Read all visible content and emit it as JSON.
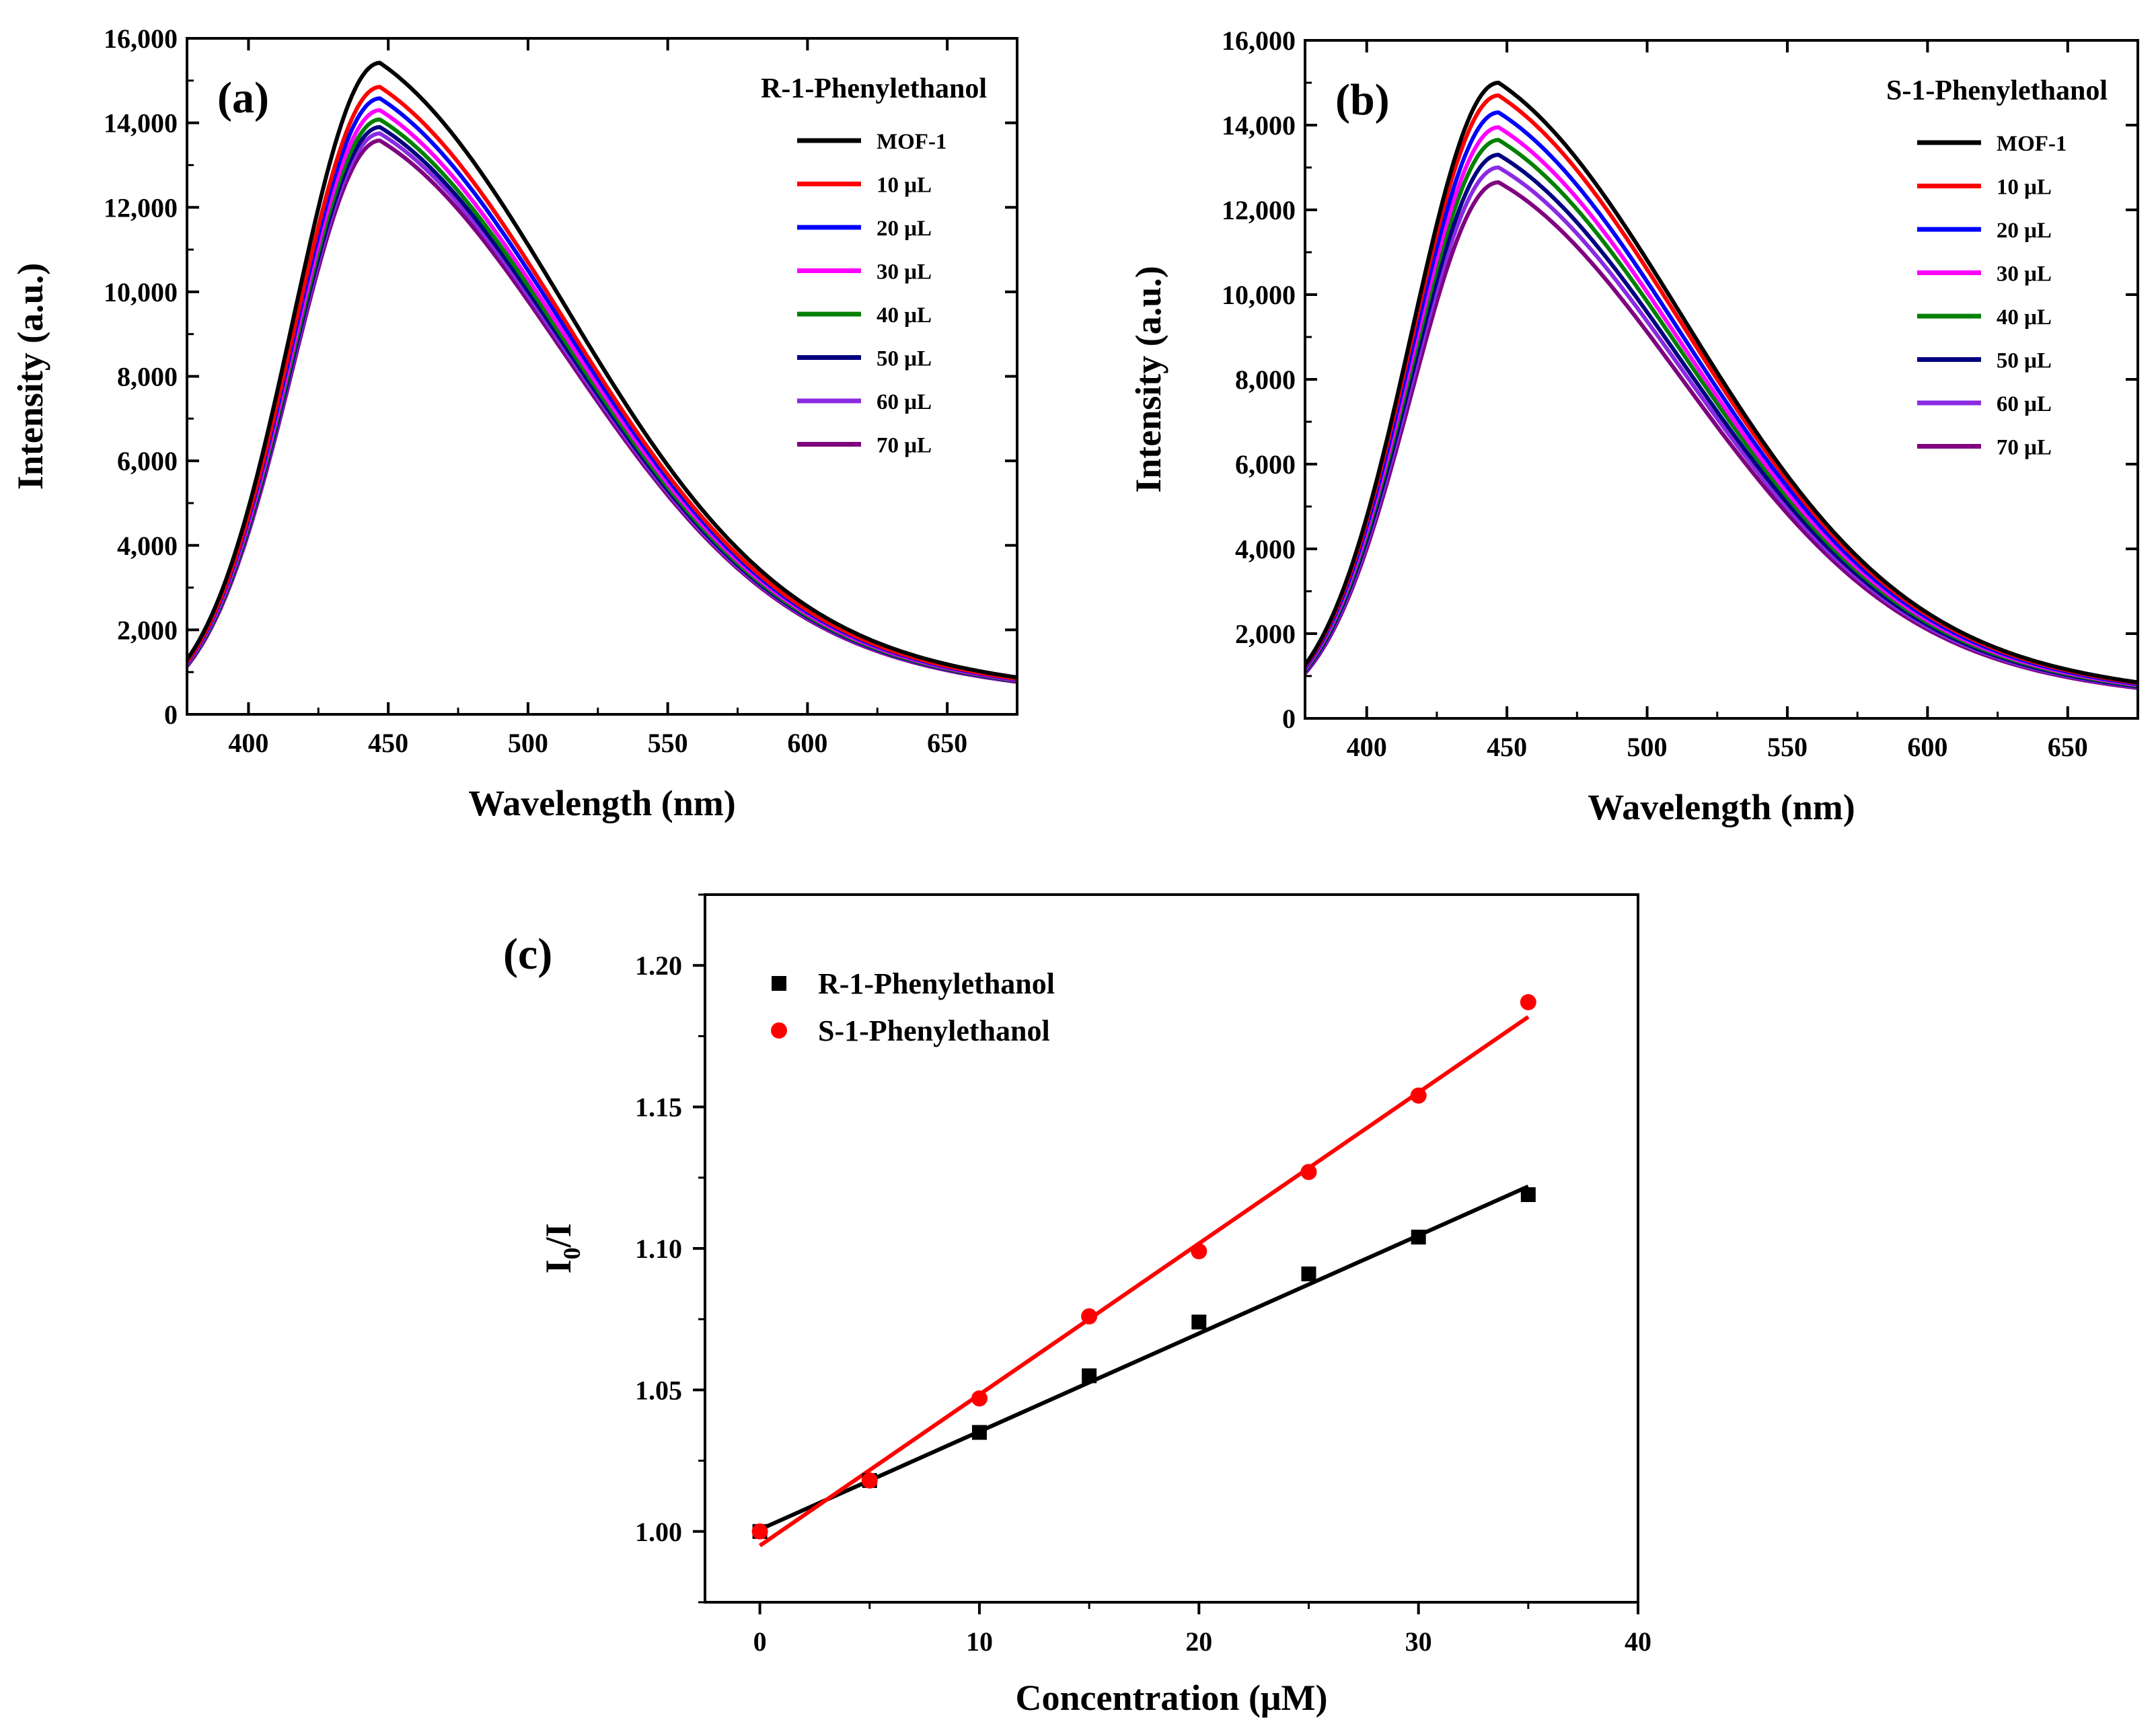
{
  "figure": {
    "description_free": true
  },
  "chart_data": [
    {
      "type": "line",
      "panel_label": "(a)",
      "title": "R-1-Phenylethanol",
      "xlabel": "Wavelength (nm)",
      "ylabel": "Intensity (a.u.)",
      "xlim": [
        378,
        675
      ],
      "ylim": [
        0,
        16000
      ],
      "xticks": [
        400,
        450,
        500,
        550,
        600,
        650
      ],
      "xtick_labels": [
        "400",
        "450",
        "500",
        "550",
        "600",
        "650"
      ],
      "yticks": [
        0,
        2000,
        4000,
        6000,
        8000,
        10000,
        12000,
        14000,
        16000
      ],
      "ytick_labels": [
        "0",
        "2,000",
        "4,000",
        "6,000",
        "8,000",
        "10,000",
        "12,000",
        "14,000",
        "16,000"
      ],
      "legend_position": "top-right",
      "peak_wavelength": 447,
      "series": [
        {
          "name": "MOF-1",
          "color": "#000000",
          "peak": 15420
        },
        {
          "name": "10 μL",
          "color": "#ff0000",
          "peak": 14850
        },
        {
          "name": "20 μL",
          "color": "#0000ff",
          "peak": 14580
        },
        {
          "name": "30 μL",
          "color": "#ff00ff",
          "peak": 14300
        },
        {
          "name": "40 μL",
          "color": "#008000",
          "peak": 14080
        },
        {
          "name": "50 μL",
          "color": "#000080",
          "peak": 13900
        },
        {
          "name": "60 μL",
          "color": "#8a2be2",
          "peak": 13750
        },
        {
          "name": "70 μL",
          "color": "#800080",
          "peak": 13580
        }
      ]
    },
    {
      "type": "line",
      "panel_label": "(b)",
      "title": "S-1-Phenylethanol",
      "xlabel": "Wavelength (nm)",
      "ylabel": "Intensity (a.u.)",
      "xlim": [
        378,
        675
      ],
      "ylim": [
        0,
        16000
      ],
      "xticks": [
        400,
        450,
        500,
        550,
        600,
        650
      ],
      "xtick_labels": [
        "400",
        "450",
        "500",
        "550",
        "600",
        "650"
      ],
      "yticks": [
        0,
        2000,
        4000,
        6000,
        8000,
        10000,
        12000,
        14000,
        16000
      ],
      "ytick_labels": [
        "0",
        "2,000",
        "4,000",
        "6,000",
        "8,000",
        "10,000",
        "12,000",
        "14,000",
        "16,000"
      ],
      "legend_position": "top-right",
      "peak_wavelength": 447,
      "series": [
        {
          "name": "MOF-1",
          "color": "#000000",
          "peak": 15000
        },
        {
          "name": "10 μL",
          "color": "#ff0000",
          "peak": 14700
        },
        {
          "name": "20 μL",
          "color": "#0000ff",
          "peak": 14300
        },
        {
          "name": "30 μL",
          "color": "#ff00ff",
          "peak": 13950
        },
        {
          "name": "40 μL",
          "color": "#008000",
          "peak": 13650
        },
        {
          "name": "50 μL",
          "color": "#000080",
          "peak": 13300
        },
        {
          "name": "60 μL",
          "color": "#8a2be2",
          "peak": 13000
        },
        {
          "name": "70 μL",
          "color": "#800080",
          "peak": 12650
        }
      ]
    },
    {
      "type": "scatter",
      "panel_label": "(c)",
      "title": "",
      "xlabel": "Concentration (μM)",
      "ylabel_main": "I",
      "ylabel_sub": "0",
      "ylabel_tail": "/I",
      "xlim": [
        -2.5,
        40
      ],
      "ylim": [
        0.975,
        1.225
      ],
      "xticks": [
        0,
        10,
        20,
        30,
        40
      ],
      "xtick_labels": [
        "0",
        "10",
        "20",
        "30",
        "40"
      ],
      "yticks": [
        1.0,
        1.05,
        1.1,
        1.15,
        1.2
      ],
      "ytick_labels": [
        "1.00",
        "1.05",
        "1.10",
        "1.15",
        "1.20"
      ],
      "legend_position": "top-left",
      "series": [
        {
          "name": "R-1-Phenylethanol",
          "marker": "square",
          "color": "#000000",
          "x": [
            0,
            5,
            10,
            15,
            20,
            25,
            30,
            35
          ],
          "y": [
            1.0,
            1.018,
            1.035,
            1.055,
            1.074,
            1.091,
            1.104,
            1.119
          ],
          "fit": {
            "slope": 0.003463,
            "intercept": 1.0007
          }
        },
        {
          "name": "S-1-Phenylethanol",
          "marker": "circle",
          "color": "#ff0000",
          "x": [
            0,
            5,
            10,
            15,
            20,
            25,
            30,
            35
          ],
          "y": [
            1.0,
            1.018,
            1.047,
            1.076,
            1.099,
            1.127,
            1.154,
            1.187
          ],
          "fit": {
            "slope": 0.005337,
            "intercept": 0.995
          }
        }
      ]
    }
  ]
}
